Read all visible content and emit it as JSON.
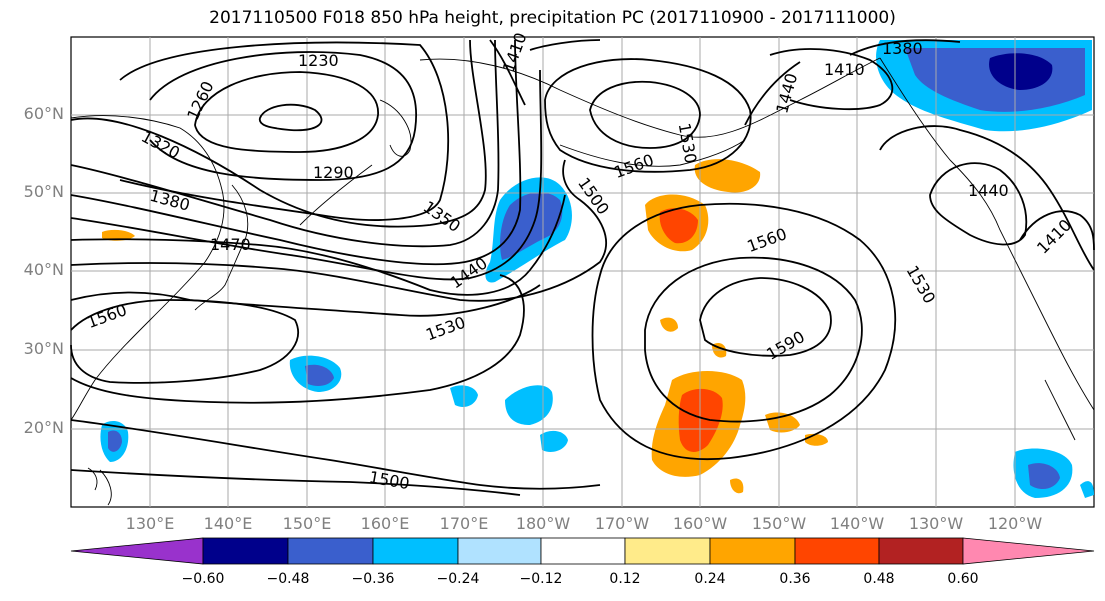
{
  "title": "2017110500 F018 850 hPa height, precipitation PC (2017110900 - 2017111000)",
  "map": {
    "lat_labels": [
      "60°N",
      "50°N",
      "40°N",
      "30°N",
      "20°N"
    ],
    "lon_labels": [
      "130°E",
      "140°E",
      "150°E",
      "160°E",
      "170°E",
      "180°W",
      "170°W",
      "160°W",
      "150°W",
      "140°W",
      "130°W",
      "120°W"
    ],
    "contour_labels": [
      "1230",
      "1260",
      "1290",
      "1320",
      "1350",
      "1380",
      "1380",
      "1410",
      "1410",
      "1410",
      "1440",
      "1440",
      "1440",
      "1470",
      "1500",
      "1500",
      "1530",
      "1530",
      "1530",
      "1560",
      "1560",
      "1560",
      "1590"
    ]
  },
  "colorbar": {
    "ticks": [
      "−0.60",
      "−0.48",
      "−0.36",
      "−0.24",
      "−0.12",
      "0.12",
      "0.24",
      "0.36",
      "0.48",
      "0.60"
    ],
    "colors": [
      "#9932cc",
      "#00008b",
      "#3a5fcd",
      "#00bfff",
      "#b0e2ff",
      "#ffffff",
      "#ffeb8a",
      "#ffa500",
      "#ff4500",
      "#b22222",
      "#ff88b0"
    ]
  }
}
